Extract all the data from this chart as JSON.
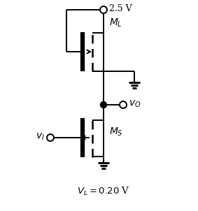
{
  "bg_color": "#ffffff",
  "vdd_label": "2.5 V",
  "ml_label": "$M_L$",
  "ms_label": "$M_S$",
  "vo_label": "$v_O$",
  "vi_label": "$v_I$",
  "vl_label": "$V_L = 0.20$ V",
  "figsize": [
    2.83,
    3.02
  ],
  "dpi": 100,
  "lw": 1.4,
  "lw_thick": 4.5
}
